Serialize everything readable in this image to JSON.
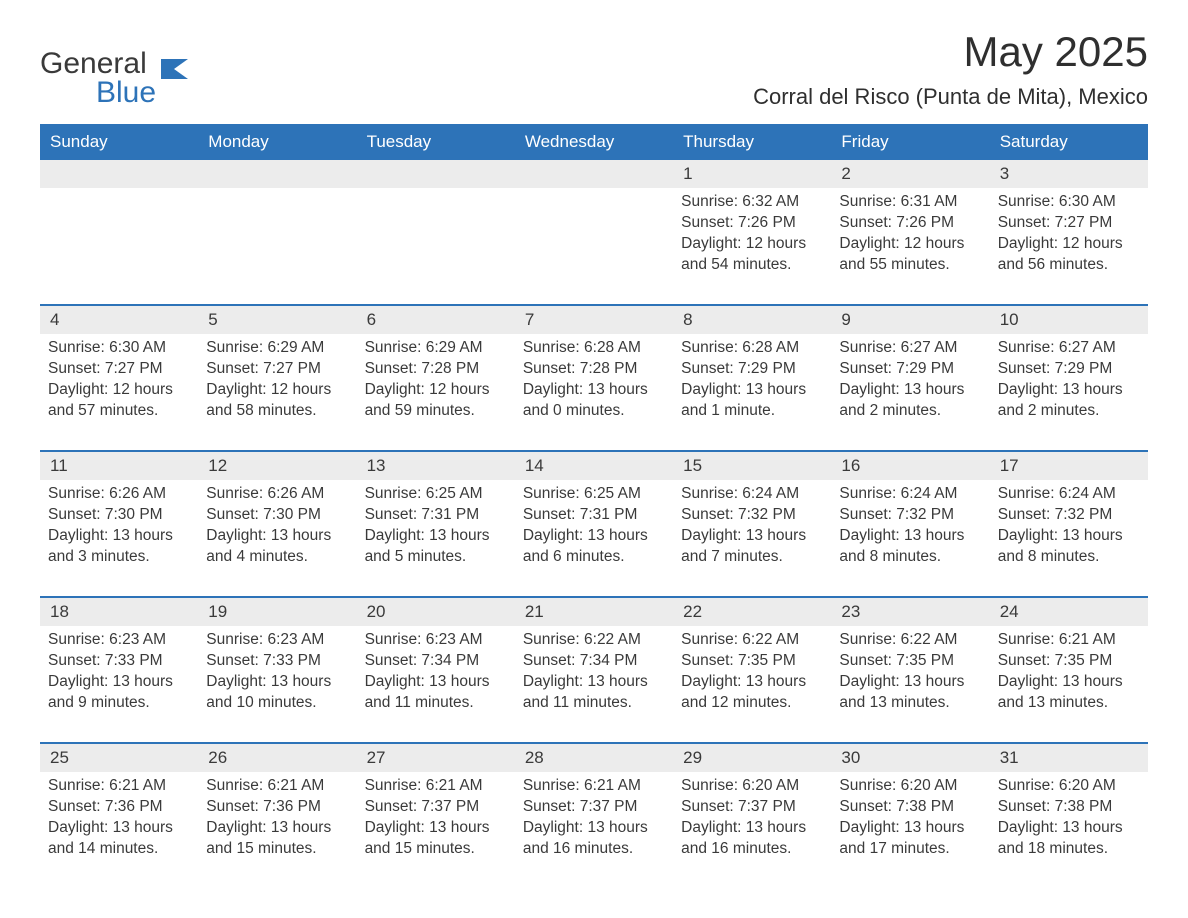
{
  "logo": {
    "general": "General",
    "blue": "Blue"
  },
  "title": "May 2025",
  "location": "Corral del Risco (Punta de Mita), Mexico",
  "theme": {
    "header_bg": "#2d73b8",
    "header_fg": "#ffffff",
    "daynum_bg": "#ececec",
    "text_color": "#3a3a3a",
    "rule_color": "#2d73b8",
    "page_bg": "#ffffff"
  },
  "daynames": [
    "Sunday",
    "Monday",
    "Tuesday",
    "Wednesday",
    "Thursday",
    "Friday",
    "Saturday"
  ],
  "weeks": [
    [
      null,
      null,
      null,
      null,
      {
        "n": "1",
        "sunrise": "Sunrise: 6:32 AM",
        "sunset": "Sunset: 7:26 PM",
        "daylight": "Daylight: 12 hours and 54 minutes."
      },
      {
        "n": "2",
        "sunrise": "Sunrise: 6:31 AM",
        "sunset": "Sunset: 7:26 PM",
        "daylight": "Daylight: 12 hours and 55 minutes."
      },
      {
        "n": "3",
        "sunrise": "Sunrise: 6:30 AM",
        "sunset": "Sunset: 7:27 PM",
        "daylight": "Daylight: 12 hours and 56 minutes."
      }
    ],
    [
      {
        "n": "4",
        "sunrise": "Sunrise: 6:30 AM",
        "sunset": "Sunset: 7:27 PM",
        "daylight": "Daylight: 12 hours and 57 minutes."
      },
      {
        "n": "5",
        "sunrise": "Sunrise: 6:29 AM",
        "sunset": "Sunset: 7:27 PM",
        "daylight": "Daylight: 12 hours and 58 minutes."
      },
      {
        "n": "6",
        "sunrise": "Sunrise: 6:29 AM",
        "sunset": "Sunset: 7:28 PM",
        "daylight": "Daylight: 12 hours and 59 minutes."
      },
      {
        "n": "7",
        "sunrise": "Sunrise: 6:28 AM",
        "sunset": "Sunset: 7:28 PM",
        "daylight": "Daylight: 13 hours and 0 minutes."
      },
      {
        "n": "8",
        "sunrise": "Sunrise: 6:28 AM",
        "sunset": "Sunset: 7:29 PM",
        "daylight": "Daylight: 13 hours and 1 minute."
      },
      {
        "n": "9",
        "sunrise": "Sunrise: 6:27 AM",
        "sunset": "Sunset: 7:29 PM",
        "daylight": "Daylight: 13 hours and 2 minutes."
      },
      {
        "n": "10",
        "sunrise": "Sunrise: 6:27 AM",
        "sunset": "Sunset: 7:29 PM",
        "daylight": "Daylight: 13 hours and 2 minutes."
      }
    ],
    [
      {
        "n": "11",
        "sunrise": "Sunrise: 6:26 AM",
        "sunset": "Sunset: 7:30 PM",
        "daylight": "Daylight: 13 hours and 3 minutes."
      },
      {
        "n": "12",
        "sunrise": "Sunrise: 6:26 AM",
        "sunset": "Sunset: 7:30 PM",
        "daylight": "Daylight: 13 hours and 4 minutes."
      },
      {
        "n": "13",
        "sunrise": "Sunrise: 6:25 AM",
        "sunset": "Sunset: 7:31 PM",
        "daylight": "Daylight: 13 hours and 5 minutes."
      },
      {
        "n": "14",
        "sunrise": "Sunrise: 6:25 AM",
        "sunset": "Sunset: 7:31 PM",
        "daylight": "Daylight: 13 hours and 6 minutes."
      },
      {
        "n": "15",
        "sunrise": "Sunrise: 6:24 AM",
        "sunset": "Sunset: 7:32 PM",
        "daylight": "Daylight: 13 hours and 7 minutes."
      },
      {
        "n": "16",
        "sunrise": "Sunrise: 6:24 AM",
        "sunset": "Sunset: 7:32 PM",
        "daylight": "Daylight: 13 hours and 8 minutes."
      },
      {
        "n": "17",
        "sunrise": "Sunrise: 6:24 AM",
        "sunset": "Sunset: 7:32 PM",
        "daylight": "Daylight: 13 hours and 8 minutes."
      }
    ],
    [
      {
        "n": "18",
        "sunrise": "Sunrise: 6:23 AM",
        "sunset": "Sunset: 7:33 PM",
        "daylight": "Daylight: 13 hours and 9 minutes."
      },
      {
        "n": "19",
        "sunrise": "Sunrise: 6:23 AM",
        "sunset": "Sunset: 7:33 PM",
        "daylight": "Daylight: 13 hours and 10 minutes."
      },
      {
        "n": "20",
        "sunrise": "Sunrise: 6:23 AM",
        "sunset": "Sunset: 7:34 PM",
        "daylight": "Daylight: 13 hours and 11 minutes."
      },
      {
        "n": "21",
        "sunrise": "Sunrise: 6:22 AM",
        "sunset": "Sunset: 7:34 PM",
        "daylight": "Daylight: 13 hours and 11 minutes."
      },
      {
        "n": "22",
        "sunrise": "Sunrise: 6:22 AM",
        "sunset": "Sunset: 7:35 PM",
        "daylight": "Daylight: 13 hours and 12 minutes."
      },
      {
        "n": "23",
        "sunrise": "Sunrise: 6:22 AM",
        "sunset": "Sunset: 7:35 PM",
        "daylight": "Daylight: 13 hours and 13 minutes."
      },
      {
        "n": "24",
        "sunrise": "Sunrise: 6:21 AM",
        "sunset": "Sunset: 7:35 PM",
        "daylight": "Daylight: 13 hours and 13 minutes."
      }
    ],
    [
      {
        "n": "25",
        "sunrise": "Sunrise: 6:21 AM",
        "sunset": "Sunset: 7:36 PM",
        "daylight": "Daylight: 13 hours and 14 minutes."
      },
      {
        "n": "26",
        "sunrise": "Sunrise: 6:21 AM",
        "sunset": "Sunset: 7:36 PM",
        "daylight": "Daylight: 13 hours and 15 minutes."
      },
      {
        "n": "27",
        "sunrise": "Sunrise: 6:21 AM",
        "sunset": "Sunset: 7:37 PM",
        "daylight": "Daylight: 13 hours and 15 minutes."
      },
      {
        "n": "28",
        "sunrise": "Sunrise: 6:21 AM",
        "sunset": "Sunset: 7:37 PM",
        "daylight": "Daylight: 13 hours and 16 minutes."
      },
      {
        "n": "29",
        "sunrise": "Sunrise: 6:20 AM",
        "sunset": "Sunset: 7:37 PM",
        "daylight": "Daylight: 13 hours and 16 minutes."
      },
      {
        "n": "30",
        "sunrise": "Sunrise: 6:20 AM",
        "sunset": "Sunset: 7:38 PM",
        "daylight": "Daylight: 13 hours and 17 minutes."
      },
      {
        "n": "31",
        "sunrise": "Sunrise: 6:20 AM",
        "sunset": "Sunset: 7:38 PM",
        "daylight": "Daylight: 13 hours and 18 minutes."
      }
    ]
  ]
}
